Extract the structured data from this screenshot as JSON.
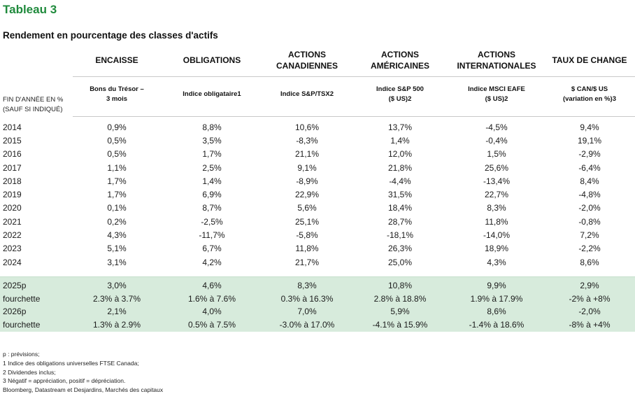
{
  "title": "Tableau 3",
  "subtitle": "Rendement en pourcentage des classes d'actifs",
  "row_label_header": "FIN D'ANNÉE EN %\n(SAUF SI INDIQUÉ)",
  "categories": [
    "ENCAISSE",
    "OBLIGATIONS",
    "ACTIONS\nCANADIENNES",
    "ACTIONS\nAMÉRICAINES",
    "ACTIONS\nINTERNATIONALES",
    "TAUX DE CHANGE"
  ],
  "indices": [
    "Bons du Trésor –\n3 mois",
    "Indice obligataire1",
    "Indice S&P/TSX2",
    "Indice S&P 500\n($ US)2",
    "Indice MSCI EAFE\n($ US)2",
    "$ CAN/$ US\n(variation en %)3"
  ],
  "rows": [
    {
      "label": "2014",
      "values": [
        "0,9%",
        "8,8%",
        "10,6%",
        "13,7%",
        "-4,5%",
        "9,4%"
      ]
    },
    {
      "label": "2015",
      "values": [
        "0,5%",
        "3,5%",
        "-8,3%",
        "1,4%",
        "-0,4%",
        "19,1%"
      ]
    },
    {
      "label": "2016",
      "values": [
        "0,5%",
        "1,7%",
        "21,1%",
        "12,0%",
        "1,5%",
        "-2,9%"
      ]
    },
    {
      "label": "2017",
      "values": [
        "1,1%",
        "2,5%",
        "9,1%",
        "21,8%",
        "25,6%",
        "-6,4%"
      ]
    },
    {
      "label": "2018",
      "values": [
        "1,7%",
        "1,4%",
        "-8,9%",
        "-4,4%",
        "-13,4%",
        "8,4%"
      ]
    },
    {
      "label": "2019",
      "values": [
        "1,7%",
        "6,9%",
        "22,9%",
        "31,5%",
        "22,7%",
        "-4,8%"
      ]
    },
    {
      "label": "2020",
      "values": [
        "0,1%",
        "8,7%",
        "5,6%",
        "18,4%",
        "8,3%",
        "-2,0%"
      ]
    },
    {
      "label": "2021",
      "values": [
        "0,2%",
        "-2,5%",
        "25,1%",
        "28,7%",
        "11,8%",
        "-0,8%"
      ]
    },
    {
      "label": "2022",
      "values": [
        "4,3%",
        "-11,7%",
        "-5,8%",
        "-18,1%",
        "-14,0%",
        "7,2%"
      ]
    },
    {
      "label": "2023",
      "values": [
        "5,1%",
        "6,7%",
        "11,8%",
        "26,3%",
        "18,9%",
        "-2,2%"
      ]
    },
    {
      "label": "2024",
      "values": [
        "3,1%",
        "4,2%",
        "21,7%",
        "25,0%",
        "4,3%",
        "8,6%"
      ]
    }
  ],
  "forecast_rows": [
    {
      "label": "2025p",
      "values": [
        "3,0%",
        "4,6%",
        "8,3%",
        "10,8%",
        "9,9%",
        "2,9%"
      ]
    },
    {
      "label": "fourchette",
      "values": [
        "2.3% à 3.7%",
        "1.6% à 7.6%",
        "0.3% à 16.3%",
        "2.8% à 18.8%",
        "1.9% à 17.9%",
        "-2% à +8%"
      ]
    },
    {
      "label": "2026p",
      "values": [
        "2,1%",
        "4,0%",
        "7,0%",
        "5,9%",
        "8,6%",
        "-2,0%"
      ]
    },
    {
      "label": "fourchette",
      "values": [
        "1.3% à 2.9%",
        "0.5% à 7.5%",
        "-3.0% à 17.0%",
        "-4.1% à 15.9%",
        "-1.4% à 18.6%",
        "-8% à +4%"
      ]
    }
  ],
  "notes": [
    "p : prévisions;",
    "1 Indice des obligations universelles FTSE Canada;",
    "2 Dividendes inclus;",
    "3 Négatif = appréciation, positif = dépréciation.",
    "Bloomberg, Datastream et Desjardins, Marchés des capitaux"
  ],
  "colors": {
    "title": "#1f8a3c",
    "forecast_band": "#d7ebdc"
  }
}
